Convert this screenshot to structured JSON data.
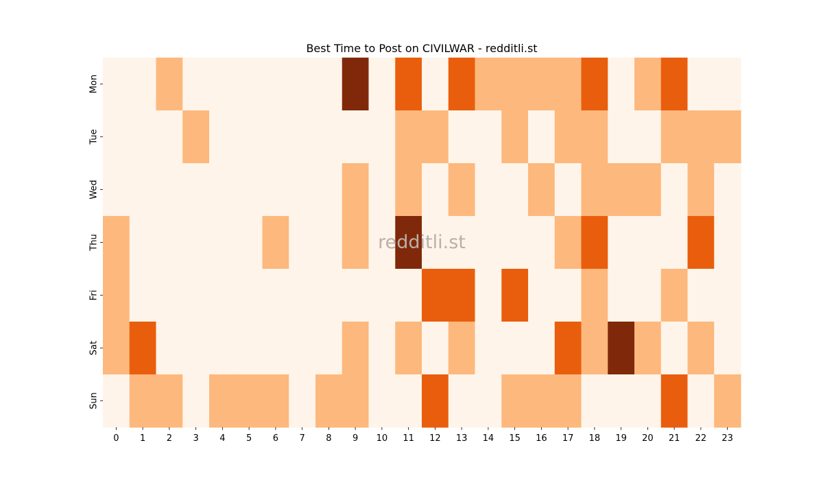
{
  "chart_data": {
    "type": "heatmap",
    "title": "Best Time to Post on CIVILWAR - redditli.st",
    "watermark": "redditli.st",
    "x_categories": [
      "0",
      "1",
      "2",
      "3",
      "4",
      "5",
      "6",
      "7",
      "8",
      "9",
      "10",
      "11",
      "12",
      "13",
      "14",
      "15",
      "16",
      "17",
      "18",
      "19",
      "20",
      "21",
      "22",
      "23"
    ],
    "y_categories": [
      "Mon",
      "Tue",
      "Wed",
      "Thu",
      "Fri",
      "Sat",
      "Sun"
    ],
    "values": [
      [
        0,
        0,
        1,
        0,
        0,
        0,
        0,
        0,
        0,
        3,
        0,
        2,
        0,
        2,
        1,
        1,
        1,
        1,
        2,
        0,
        1,
        2,
        0,
        0
      ],
      [
        0,
        0,
        0,
        1,
        0,
        0,
        0,
        0,
        0,
        0,
        0,
        1,
        1,
        0,
        0,
        1,
        0,
        1,
        1,
        0,
        0,
        1,
        1,
        1
      ],
      [
        0,
        0,
        0,
        0,
        0,
        0,
        0,
        0,
        0,
        1,
        0,
        1,
        0,
        1,
        0,
        0,
        1,
        0,
        1,
        1,
        1,
        0,
        1,
        0
      ],
      [
        1,
        0,
        0,
        0,
        0,
        0,
        1,
        0,
        0,
        1,
        0,
        3,
        0,
        0,
        0,
        0,
        0,
        1,
        2,
        0,
        0,
        0,
        2,
        0
      ],
      [
        1,
        0,
        0,
        0,
        0,
        0,
        0,
        0,
        0,
        0,
        0,
        0,
        2,
        2,
        0,
        2,
        0,
        0,
        1,
        0,
        0,
        1,
        0,
        0
      ],
      [
        1,
        2,
        0,
        0,
        0,
        0,
        0,
        0,
        0,
        1,
        0,
        1,
        0,
        1,
        0,
        0,
        0,
        2,
        1,
        3,
        1,
        0,
        1,
        0
      ],
      [
        0,
        1,
        1,
        0,
        1,
        1,
        1,
        0,
        1,
        1,
        0,
        0,
        2,
        0,
        0,
        1,
        1,
        1,
        0,
        0,
        0,
        2,
        0,
        1
      ]
    ],
    "color_levels": [
      "#fff4e9",
      "#fdb87d",
      "#e95e0d",
      "#80290a"
    ],
    "colormap": "Oranges",
    "grid": false,
    "legend": "none"
  }
}
